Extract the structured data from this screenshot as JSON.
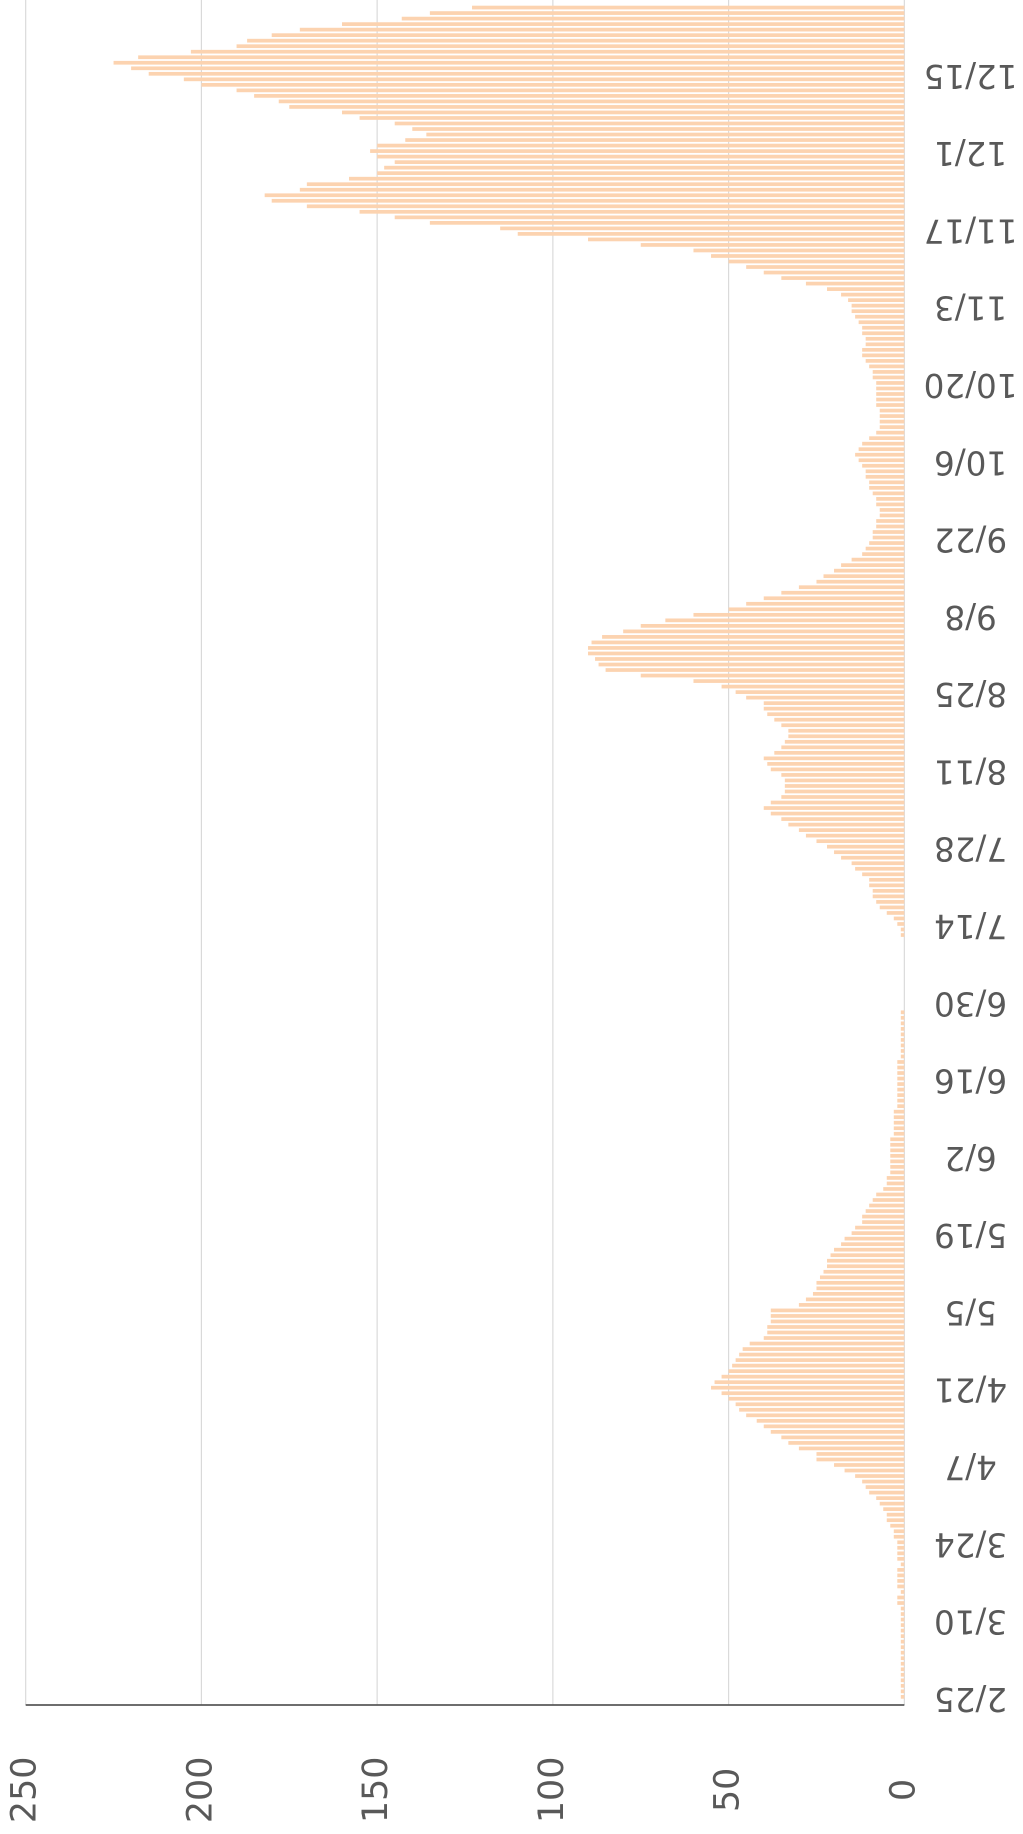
{
  "chart_data": {
    "type": "bar",
    "orientation": "horizontal",
    "color": "#fcd3b0",
    "categories": [
      "2/25",
      null,
      null,
      null,
      null,
      null,
      null,
      null,
      null,
      null,
      null,
      null,
      null,
      null,
      "3/10",
      null,
      null,
      null,
      null,
      null,
      null,
      null,
      null,
      null,
      null,
      null,
      null,
      null,
      "3/24",
      null,
      null,
      null,
      null,
      null,
      null,
      null,
      null,
      null,
      null,
      null,
      null,
      null,
      "4/7",
      null,
      null,
      null,
      null,
      null,
      null,
      null,
      null,
      null,
      null,
      null,
      null,
      null,
      "4/21",
      null,
      null,
      null,
      null,
      null,
      null,
      null,
      null,
      null,
      null,
      null,
      null,
      null,
      "5/5",
      null,
      null,
      null,
      null,
      null,
      null,
      null,
      null,
      null,
      null,
      null,
      null,
      null,
      "5/19",
      null,
      null,
      null,
      null,
      null,
      null,
      null,
      null,
      null,
      null,
      null,
      null,
      null,
      "6/2",
      null,
      null,
      null,
      null,
      null,
      null,
      null,
      null,
      null,
      null,
      null,
      null,
      null,
      "6/16",
      null,
      null,
      null,
      null,
      null,
      null,
      null,
      null,
      null,
      null,
      null,
      null,
      null,
      "6/30",
      null,
      null,
      null,
      null,
      null,
      null,
      null,
      null,
      null,
      null,
      null,
      null,
      null,
      "7/14",
      null,
      null,
      null,
      null,
      null,
      null,
      null,
      null,
      null,
      null,
      null,
      null,
      null,
      "7/28",
      null,
      null,
      null,
      null,
      null,
      null,
      null,
      null,
      null,
      null,
      null,
      null,
      null,
      "8/11",
      null,
      null,
      null,
      null,
      null,
      null,
      null,
      null,
      null,
      null,
      null,
      null,
      null,
      "8/25",
      null,
      null,
      null,
      null,
      null,
      null,
      null,
      null,
      null,
      null,
      null,
      null,
      null,
      "9/8",
      null,
      null,
      null,
      null,
      null,
      null,
      null,
      null,
      null,
      null,
      null,
      null,
      null,
      "9/22",
      null,
      null,
      null,
      null,
      null,
      null,
      null,
      null,
      null,
      null,
      null,
      null,
      null,
      "10/6",
      null,
      null,
      null,
      null,
      null,
      null,
      null,
      null,
      null,
      null,
      null,
      null,
      null,
      "10/20",
      null,
      null,
      null,
      null,
      null,
      null,
      null,
      null,
      null,
      null,
      null,
      null,
      null,
      "11/3",
      null,
      null,
      null,
      null,
      null,
      null,
      null,
      null,
      null,
      null,
      null,
      null,
      null,
      "11/17",
      null,
      null,
      null,
      null,
      null,
      null,
      null,
      null,
      null,
      null,
      null,
      null,
      null,
      "12/1",
      null,
      null,
      null,
      null,
      null,
      null,
      null,
      null,
      null,
      null,
      null,
      null,
      null,
      "12/15",
      null,
      null,
      null,
      null,
      null,
      null,
      null,
      null,
      null,
      null,
      null,
      null
    ],
    "values": [
      1,
      1,
      1,
      1,
      1,
      1,
      1,
      1,
      1,
      1,
      1,
      1,
      1,
      1,
      1,
      1,
      1,
      2,
      2,
      1,
      2,
      2,
      2,
      2,
      1,
      2,
      2,
      2,
      2,
      3,
      3,
      4,
      5,
      5,
      6,
      7,
      8,
      10,
      11,
      12,
      14,
      17,
      20,
      25,
      25,
      30,
      33,
      35,
      38,
      40,
      42,
      45,
      47,
      48,
      50,
      52,
      55,
      54,
      52,
      50,
      49,
      48,
      47,
      46,
      44,
      40,
      39,
      39,
      38,
      38,
      38,
      30,
      28,
      26,
      25,
      25,
      24,
      23,
      22,
      22,
      21,
      20,
      18,
      17,
      15,
      14,
      12,
      12,
      11,
      10,
      9,
      8,
      6,
      5,
      5,
      4,
      4,
      4,
      4,
      4,
      4,
      4,
      3,
      3,
      3,
      3,
      3,
      2,
      2,
      2,
      2,
      2,
      2,
      2,
      2,
      2,
      1,
      1,
      1,
      1,
      1,
      1,
      1,
      1,
      1,
      0,
      0,
      0,
      0,
      0,
      0,
      0,
      0,
      0,
      0,
      0,
      0,
      0,
      1,
      1,
      2,
      3,
      5,
      7,
      8,
      9,
      9,
      10,
      10,
      12,
      14,
      15,
      18,
      20,
      22,
      25,
      28,
      30,
      33,
      35,
      38,
      40,
      38,
      35,
      34,
      34,
      34,
      35,
      38,
      39,
      40,
      37,
      35,
      34,
      33,
      33,
      35,
      37,
      39,
      40,
      40,
      45,
      48,
      52,
      60,
      75,
      85,
      87,
      88,
      90,
      90,
      89,
      86,
      80,
      75,
      68,
      60,
      50,
      45,
      40,
      35,
      30,
      25,
      23,
      20,
      18,
      15,
      12,
      11,
      10,
      9,
      9,
      8,
      8,
      7,
      7,
      8,
      8,
      9,
      10,
      10,
      11,
      11,
      12,
      13,
      14,
      13,
      12,
      10,
      8,
      7,
      7,
      7,
      7,
      8,
      8,
      8,
      8,
      8,
      9,
      9,
      10,
      11,
      12,
      12,
      11,
      11,
      12,
      12,
      13,
      14,
      15,
      15,
      16,
      18,
      22,
      28,
      35,
      40,
      45,
      50,
      55,
      60,
      75,
      90,
      110,
      115,
      135,
      145,
      155,
      170,
      180,
      182,
      172,
      170,
      158,
      150,
      148,
      145,
      150,
      152,
      150,
      142,
      136,
      140,
      145,
      155,
      160,
      175,
      178,
      185,
      190,
      200,
      205,
      215,
      220,
      225,
      218,
      203,
      190,
      187,
      180,
      172,
      160,
      143,
      135,
      123
    ],
    "ylim": [
      0,
      250
    ],
    "yticks": [
      0,
      50,
      100,
      150,
      200,
      250
    ],
    "grid": true
  }
}
